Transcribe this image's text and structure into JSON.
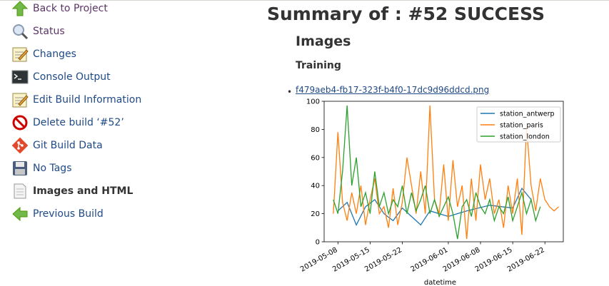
{
  "sidebar": {
    "items": [
      {
        "label": "Back to Project",
        "icon": "up-arrow-icon"
      },
      {
        "label": "Status",
        "icon": "magnifier-icon"
      },
      {
        "label": "Changes",
        "icon": "notepad-icon"
      },
      {
        "label": "Console Output",
        "icon": "terminal-icon"
      },
      {
        "label": "Edit Build Information",
        "icon": "notepad-icon"
      },
      {
        "label": "Delete build ‘#52’",
        "icon": "no-entry-icon"
      },
      {
        "label": "Git Build Data",
        "icon": "git-icon"
      },
      {
        "label": "No Tags",
        "icon": "floppy-disk-icon"
      },
      {
        "label": "Images and HTML",
        "icon": "document-icon"
      },
      {
        "label": "Previous Build",
        "icon": "left-arrow-icon"
      }
    ]
  },
  "main": {
    "title": "Summary of : #52 SUCCESS",
    "section": "Images",
    "subsection": "Training",
    "image_link": "f479aeb4-fb17-323f-b4f0-17dc9d96ddcd.png"
  },
  "chart_data": {
    "type": "line",
    "xlabel": "datetime",
    "ylabel": "",
    "ylim": [
      0,
      100
    ],
    "yticks": [
      "0",
      "20",
      "40",
      "60",
      "80",
      "100"
    ],
    "xticks": [
      "2019-05-08",
      "2019-05-15",
      "2019-05-22",
      "2019-06-01",
      "2019-06-08",
      "2019-06-15",
      "2019-06-22"
    ],
    "legend": "top-right",
    "series": [
      {
        "name": "station_antwerp",
        "color": "#1f77b4",
        "points": [
          [
            "2019-05-08",
            22
          ],
          [
            "2019-05-10",
            28
          ],
          [
            "2019-05-12",
            12
          ],
          [
            "2019-05-14",
            25
          ],
          [
            "2019-05-16",
            30
          ],
          [
            "2019-05-18",
            20
          ],
          [
            "2019-05-20",
            15
          ],
          [
            "2019-05-22",
            24
          ],
          [
            "2019-05-24",
            18
          ],
          [
            "2019-05-26",
            12
          ],
          [
            "2019-05-28",
            22
          ],
          [
            "2019-06-01",
            18
          ],
          [
            "2019-06-05",
            22
          ],
          [
            "2019-06-10",
            26
          ],
          [
            "2019-06-15",
            24
          ],
          [
            "2019-06-17",
            38
          ],
          [
            "2019-06-19",
            30
          ]
        ]
      },
      {
        "name": "station_paris",
        "color": "#ff7f0e",
        "points": [
          [
            "2019-05-07",
            20
          ],
          [
            "2019-05-08",
            78
          ],
          [
            "2019-05-09",
            28
          ],
          [
            "2019-05-10",
            15
          ],
          [
            "2019-05-11",
            35
          ],
          [
            "2019-05-12",
            20
          ],
          [
            "2019-05-13",
            40
          ],
          [
            "2019-05-14",
            12
          ],
          [
            "2019-05-15",
            30
          ],
          [
            "2019-05-16",
            45
          ],
          [
            "2019-05-17",
            20
          ],
          [
            "2019-05-18",
            25
          ],
          [
            "2019-05-19",
            10
          ],
          [
            "2019-05-20",
            38
          ],
          [
            "2019-05-21",
            12
          ],
          [
            "2019-05-22",
            28
          ],
          [
            "2019-05-23",
            60
          ],
          [
            "2019-05-24",
            40
          ],
          [
            "2019-05-25",
            20
          ],
          [
            "2019-05-26",
            50
          ],
          [
            "2019-05-27",
            20
          ],
          [
            "2019-05-28",
            97
          ],
          [
            "2019-05-29",
            30
          ],
          [
            "2019-05-30",
            20
          ],
          [
            "2019-05-31",
            55
          ],
          [
            "2019-06-01",
            15
          ],
          [
            "2019-06-02",
            58
          ],
          [
            "2019-06-03",
            25
          ],
          [
            "2019-06-04",
            40
          ],
          [
            "2019-06-05",
            2
          ],
          [
            "2019-06-06",
            45
          ],
          [
            "2019-06-07",
            15
          ],
          [
            "2019-06-08",
            55
          ],
          [
            "2019-06-09",
            30
          ],
          [
            "2019-06-10",
            45
          ],
          [
            "2019-06-11",
            20
          ],
          [
            "2019-06-12",
            30
          ],
          [
            "2019-06-13",
            10
          ],
          [
            "2019-06-14",
            40
          ],
          [
            "2019-06-15",
            20
          ],
          [
            "2019-06-16",
            45
          ],
          [
            "2019-06-17",
            5
          ],
          [
            "2019-06-18",
            82
          ],
          [
            "2019-06-19",
            40
          ],
          [
            "2019-06-20",
            22
          ],
          [
            "2019-06-21",
            45
          ],
          [
            "2019-06-22",
            30
          ],
          [
            "2019-06-23",
            25
          ],
          [
            "2019-06-24",
            22
          ],
          [
            "2019-06-25",
            25
          ]
        ]
      },
      {
        "name": "station_london",
        "color": "#2ca02c",
        "points": [
          [
            "2019-05-07",
            30
          ],
          [
            "2019-05-08",
            20
          ],
          [
            "2019-05-09",
            50
          ],
          [
            "2019-05-10",
            97
          ],
          [
            "2019-05-11",
            40
          ],
          [
            "2019-05-12",
            60
          ],
          [
            "2019-05-13",
            25
          ],
          [
            "2019-05-14",
            35
          ],
          [
            "2019-05-15",
            20
          ],
          [
            "2019-05-16",
            50
          ],
          [
            "2019-05-17",
            25
          ],
          [
            "2019-05-18",
            35
          ],
          [
            "2019-05-19",
            20
          ],
          [
            "2019-05-20",
            30
          ],
          [
            "2019-05-21",
            25
          ],
          [
            "2019-05-22",
            40
          ],
          [
            "2019-05-23",
            20
          ],
          [
            "2019-05-24",
            35
          ],
          [
            "2019-05-25",
            22
          ],
          [
            "2019-05-26",
            30
          ],
          [
            "2019-05-27",
            40
          ],
          [
            "2019-05-28",
            20
          ],
          [
            "2019-05-29",
            30
          ],
          [
            "2019-05-30",
            18
          ],
          [
            "2019-05-31",
            25
          ],
          [
            "2019-06-01",
            32
          ],
          [
            "2019-06-02",
            20
          ],
          [
            "2019-06-03",
            2
          ],
          [
            "2019-06-04",
            25
          ],
          [
            "2019-06-05",
            30
          ],
          [
            "2019-06-06",
            18
          ],
          [
            "2019-06-07",
            35
          ],
          [
            "2019-06-08",
            25
          ],
          [
            "2019-06-09",
            20
          ],
          [
            "2019-06-10",
            30
          ],
          [
            "2019-06-11",
            15
          ],
          [
            "2019-06-12",
            25
          ],
          [
            "2019-06-13",
            20
          ],
          [
            "2019-06-14",
            32
          ],
          [
            "2019-06-15",
            15
          ],
          [
            "2019-06-16",
            25
          ],
          [
            "2019-06-17",
            35
          ],
          [
            "2019-06-18",
            20
          ],
          [
            "2019-06-19",
            30
          ],
          [
            "2019-06-20",
            15
          ],
          [
            "2019-06-21",
            25
          ]
        ]
      }
    ]
  }
}
